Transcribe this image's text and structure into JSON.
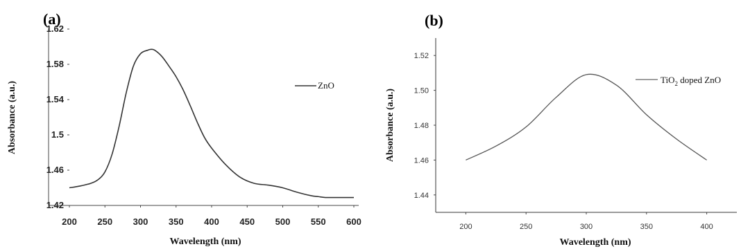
{
  "chart_data": [
    {
      "type": "line",
      "panel_label": "(a)",
      "xlabel": "Wavelength (nm)",
      "ylabel": "Absorbance (a.u.)",
      "xlim": [
        200,
        600
      ],
      "ylim": [
        1.42,
        1.62
      ],
      "x_ticks": [
        "200",
        "250",
        "300",
        "350",
        "400",
        "450",
        "500",
        "550",
        "600"
      ],
      "y_ticks": [
        "1.42",
        "1.46",
        "1.5",
        "1.54",
        "1.58",
        "1.62"
      ],
      "grid": false,
      "legend_position": "right",
      "series": [
        {
          "name": "ZnO",
          "color": "#333333",
          "x": [
            200,
            215,
            230,
            240,
            250,
            260,
            270,
            280,
            290,
            300,
            310,
            315,
            320,
            330,
            340,
            350,
            360,
            370,
            380,
            390,
            400,
            420,
            440,
            460,
            480,
            500,
            520,
            540,
            550,
            560,
            580,
            600
          ],
          "y": [
            1.44,
            1.442,
            1.445,
            1.449,
            1.458,
            1.478,
            1.51,
            1.548,
            1.578,
            1.592,
            1.596,
            1.597,
            1.596,
            1.589,
            1.578,
            1.566,
            1.551,
            1.533,
            1.514,
            1.497,
            1.485,
            1.466,
            1.452,
            1.445,
            1.443,
            1.44,
            1.435,
            1.431,
            1.43,
            1.429,
            1.429,
            1.429
          ]
        }
      ]
    },
    {
      "type": "line",
      "panel_label": "(b)",
      "xlabel": "Wavelength (nm)",
      "ylabel": "Absorbance (a.u.)",
      "xlim": [
        175,
        425
      ],
      "ylim": [
        1.43,
        1.53
      ],
      "x_ticks": [
        "200",
        "250",
        "300",
        "350",
        "400"
      ],
      "y_ticks": [
        "1.44",
        "1.46",
        "1.48",
        "1.50",
        "1.52"
      ],
      "grid": false,
      "legend_position": "top-right",
      "series": [
        {
          "name": "TiO2 doped ZnO",
          "legend_main": "TiO",
          "legend_sub": "2",
          "legend_rest": " doped ZnO",
          "color": "#555555",
          "x": [
            200,
            225,
            250,
            275,
            300,
            325,
            350,
            375,
            400
          ],
          "y": [
            1.46,
            1.468,
            1.479,
            1.496,
            1.509,
            1.503,
            1.486,
            1.472,
            1.46
          ]
        }
      ]
    }
  ]
}
